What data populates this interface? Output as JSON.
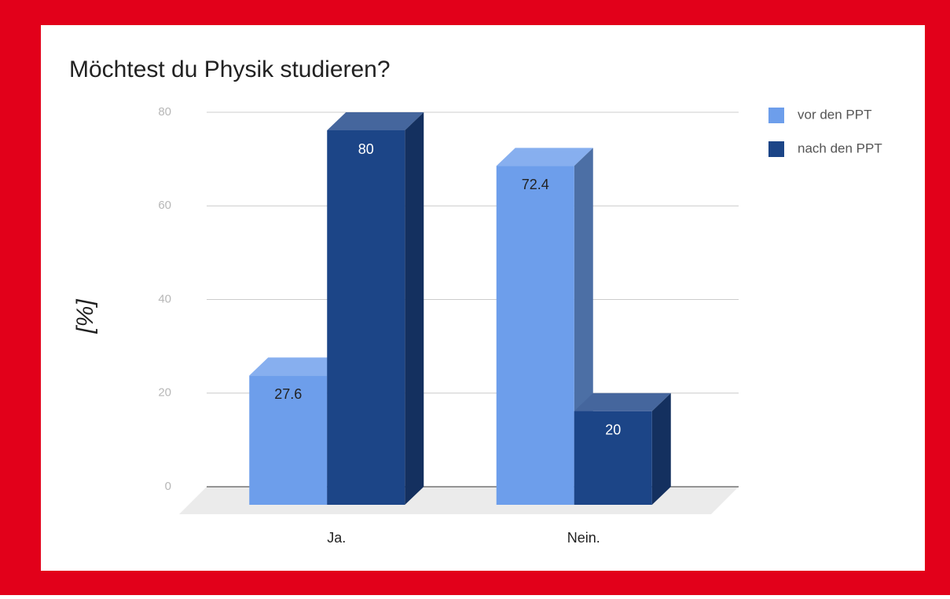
{
  "chart_data": {
    "type": "bar3d",
    "title": "Möchtest du Physik studieren?",
    "y_label": "[%]",
    "categories": [
      "Ja.",
      "Nein."
    ],
    "series": [
      {
        "name": "vor den PPT",
        "color": "#6d9eeb",
        "values": [
          27.6,
          72.4
        ]
      },
      {
        "name": "nach den PPT",
        "color": "#1c4587",
        "values": [
          80,
          20
        ]
      }
    ],
    "ylim": [
      0,
      80
    ],
    "yticks": [
      0,
      20,
      40,
      60,
      80
    ],
    "grid": true,
    "legend": "right",
    "data_labels": true
  }
}
